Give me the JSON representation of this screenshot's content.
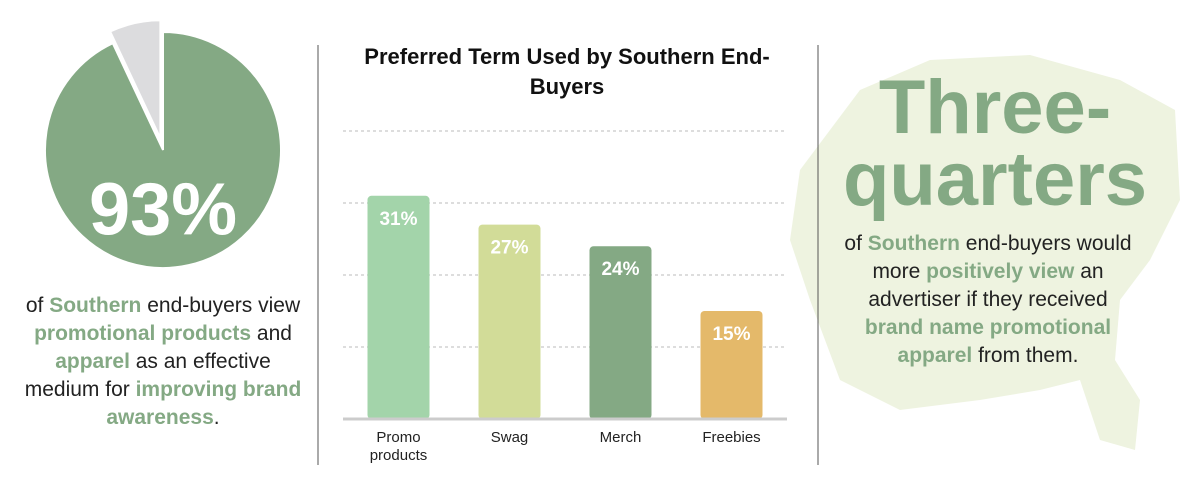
{
  "chart_data": [
    {
      "type": "pie",
      "values": [
        93,
        7
      ],
      "colors": [
        "#84a984",
        "#dcdcde"
      ],
      "value_labels": [
        "93%",
        null
      ]
    },
    {
      "type": "bar",
      "title": "Preferred Term Used by Southern End-Buyers",
      "categories": [
        "Promo products",
        "Swag",
        "Merch",
        "Freebies"
      ],
      "values": [
        31,
        27,
        24,
        15
      ],
      "value_labels": [
        "31%",
        "27%",
        "24%",
        "15%"
      ],
      "colors": [
        "#a3d4aa",
        "#d2dc98",
        "#84a984",
        "#e4b96a"
      ],
      "ylim": [
        0,
        40
      ],
      "yticks": [
        0,
        10,
        20,
        30,
        40
      ],
      "grid": true
    }
  ],
  "left_text": [
    {
      "text": "of "
    },
    {
      "text": "Southern",
      "highlight": true
    },
    {
      "text": " end-buyers view "
    },
    {
      "text": "promotional products",
      "highlight": true
    },
    {
      "text": " and "
    },
    {
      "text": "apparel",
      "highlight": true
    },
    {
      "text": " as an effective medium for "
    },
    {
      "text": "improving brand awareness",
      "highlight": true
    },
    {
      "text": "."
    }
  ],
  "right_heading": "Three-quarters",
  "right_text": [
    {
      "text": "of "
    },
    {
      "text": "Southern",
      "highlight": true
    },
    {
      "text": " end-buyers would more "
    },
    {
      "text": "positively view",
      "highlight": true
    },
    {
      "text": " an advertiser if they received "
    },
    {
      "text": "brand name promotional apparel",
      "highlight": true
    },
    {
      "text": " from them."
    }
  ]
}
